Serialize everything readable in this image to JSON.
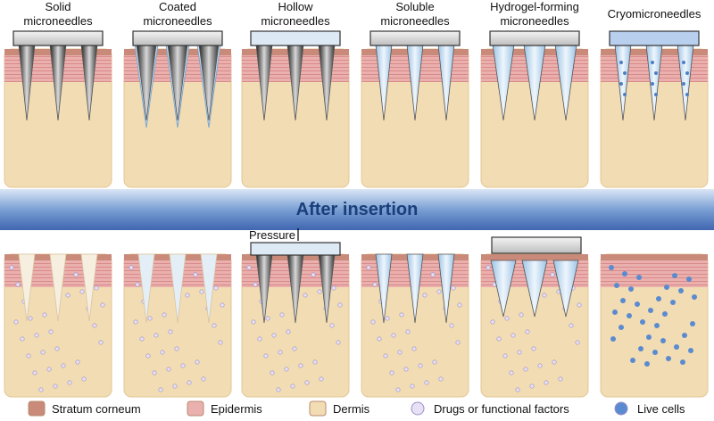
{
  "panels": [
    {
      "label": [
        "Solid",
        "microneedles"
      ]
    },
    {
      "label": [
        "Coated",
        "microneedles"
      ]
    },
    {
      "label": [
        "Hollow",
        "microneedles"
      ]
    },
    {
      "label": [
        "Soluble",
        "microneedles"
      ]
    },
    {
      "label": [
        "Hydrogel-forming",
        "microneedles"
      ]
    },
    {
      "label": [
        "Cryomicroneedles"
      ]
    }
  ],
  "banner": "After insertion",
  "pressure_label": "Pressure",
  "legend": [
    "Stratum corneum",
    "Epidermis",
    "Dermis",
    "Drugs or functional factors",
    "Live cells"
  ]
}
